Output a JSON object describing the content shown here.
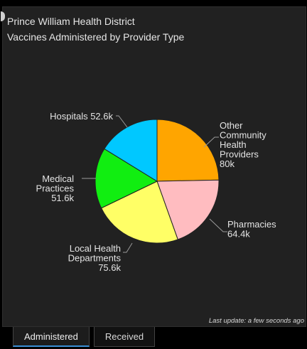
{
  "header": {
    "title": "Prince William Health District",
    "subtitle": "Vaccines Administered by Provider Type"
  },
  "chart_data": {
    "type": "pie",
    "title": "Vaccines Administered by Provider Type",
    "legend": "none",
    "slices": [
      {
        "label_lines": [
          "Other",
          "Community",
          "Health",
          "Providers",
          "80k"
        ],
        "value": 80.0,
        "display": "80k",
        "color": "#FFA500"
      },
      {
        "label_lines": [
          "Pharmacies",
          "64.4k"
        ],
        "value": 64.4,
        "display": "64.4k",
        "color": "#FFBCC0"
      },
      {
        "label_lines": [
          "Local Health",
          "Departments",
          "75.6k"
        ],
        "value": 75.6,
        "display": "75.6k",
        "color": "#FFFF66"
      },
      {
        "label_lines": [
          "Medical",
          "Practices",
          "51.6k"
        ],
        "value": 51.6,
        "display": "51.6k",
        "color": "#11EE11"
      },
      {
        "label_lines": [
          "Hospitals 52.6k"
        ],
        "value": 52.6,
        "display": "52.6k",
        "color": "#00C8FF"
      }
    ]
  },
  "footer": {
    "last_update": "Last update: a few seconds ago"
  },
  "tabs": [
    {
      "label": "Administered",
      "active": true
    },
    {
      "label": "Received",
      "active": false
    }
  ]
}
